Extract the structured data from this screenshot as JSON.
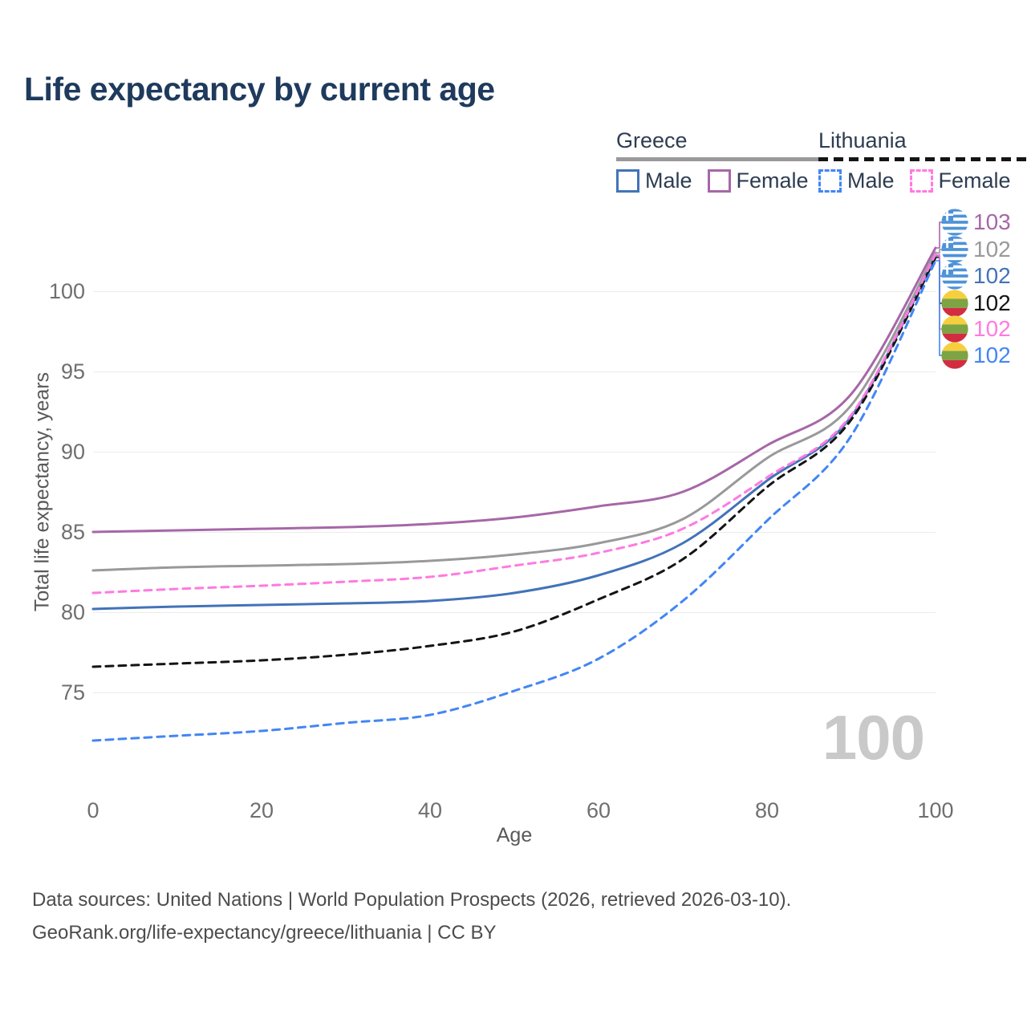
{
  "title": "Life expectancy by current age",
  "legend": {
    "greece": {
      "label": "Greece",
      "male": "Male",
      "female": "Female"
    },
    "lithuania": {
      "label": "Lithuania",
      "male": "Male",
      "female": "Female"
    }
  },
  "icons": {
    "greece": "greece-flag-icon",
    "lithuania": "lithuania-flag-icon"
  },
  "colors": {
    "title_text": "#1e3a5d",
    "axis_text": "#6f6f6f",
    "watermark": "#c9c9c9",
    "gridline": "#ebebeb"
  },
  "watermark": "100",
  "chart_data": {
    "type": "line",
    "title": "Life expectancy by current age",
    "xlabel": "Age",
    "ylabel": "Total life expectancy, years",
    "x": [
      0,
      10,
      20,
      30,
      40,
      50,
      60,
      70,
      80,
      90,
      100
    ],
    "xticks": [
      0,
      20,
      40,
      60,
      80,
      100
    ],
    "yticks": [
      75,
      80,
      85,
      90,
      95,
      100
    ],
    "xlim": [
      0,
      100
    ],
    "ylim": [
      70.5,
      103.6
    ],
    "grid": "horizontal-only",
    "legend_position": "top-right",
    "series": [
      {
        "name": "Greece Female",
        "country": "Greece",
        "sex": "Female",
        "color": "#a667a8",
        "style": "solid",
        "end_label": "103",
        "values": [
          85.0,
          85.1,
          85.2,
          85.3,
          85.5,
          85.9,
          86.6,
          87.5,
          90.4,
          93.6,
          102.7
        ]
      },
      {
        "name": "Greece (both sexes)",
        "country": "Greece",
        "sex": "All",
        "color": "#999999",
        "style": "solid",
        "end_label": "102",
        "values": [
          82.6,
          82.8,
          82.9,
          83.0,
          83.2,
          83.6,
          84.3,
          85.8,
          89.6,
          92.9,
          102.4
        ]
      },
      {
        "name": "Greece Male",
        "country": "Greece",
        "sex": "Male",
        "color": "#4273b8",
        "style": "solid",
        "end_label": "102",
        "values": [
          80.2,
          80.35,
          80.45,
          80.55,
          80.7,
          81.2,
          82.3,
          84.3,
          88.2,
          92.2,
          102.2
        ]
      },
      {
        "name": "Lithuania (both sexes)",
        "country": "Lithuania",
        "sex": "All",
        "color": "#141414",
        "style": "dashed",
        "end_label": "102",
        "values": [
          76.6,
          76.8,
          77.0,
          77.35,
          77.9,
          78.8,
          80.8,
          83.3,
          87.8,
          92.0,
          102.1
        ]
      },
      {
        "name": "Lithuania Female",
        "country": "Lithuania",
        "sex": "Female",
        "color": "#ff7ae0",
        "style": "dashed",
        "end_label": "102",
        "values": [
          81.2,
          81.45,
          81.65,
          81.9,
          82.2,
          82.9,
          83.7,
          85.2,
          88.4,
          92.3,
          102.3
        ]
      },
      {
        "name": "Lithuania Male",
        "country": "Lithuania",
        "sex": "Male",
        "color": "#4286f4",
        "style": "dashed",
        "end_label": "102",
        "values": [
          72.0,
          72.3,
          72.6,
          73.1,
          73.6,
          75.1,
          77.1,
          80.7,
          85.7,
          91.0,
          101.9
        ]
      }
    ]
  },
  "footer": {
    "line1": "Data sources: United Nations | World Population Prospects (2026, retrieved 2026-03-10).",
    "line2": "GeoRank.org/life-expectancy/greece/lithuania | CC BY"
  }
}
